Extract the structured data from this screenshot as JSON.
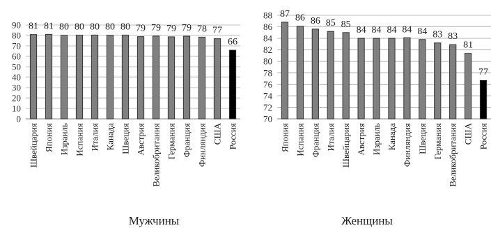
{
  "chart_data": [
    {
      "type": "bar",
      "caption": "Мужчины",
      "categories": [
        "Швейцария",
        "Япония",
        "Израиль",
        "Испания",
        "Италия",
        "Канада",
        "Швеция",
        "Австрия",
        "Великобритания",
        "Германия",
        "Франция",
        "Финляндия",
        "США",
        "Россия"
      ],
      "values": [
        81,
        81,
        80,
        80,
        80,
        80,
        80,
        79,
        79,
        79,
        79,
        78,
        77,
        66
      ],
      "exact_values": [
        80.9,
        81.1,
        80.2,
        80.3,
        80.4,
        80.2,
        80.4,
        78.9,
        79.4,
        78.7,
        79.3,
        78.4,
        76.9,
        65.9
      ],
      "ylim": [
        0,
        90
      ],
      "yticks": [
        0,
        10,
        20,
        30,
        40,
        50,
        60,
        70,
        80,
        90
      ],
      "grid": true,
      "colors": {
        "bar": "#808080",
        "highlight": "#000000"
      },
      "highlight": "Россия"
    },
    {
      "type": "bar",
      "caption": "Женщины",
      "categories": [
        "Япония",
        "Испания",
        "Франция",
        "Италия",
        "Швейцария",
        "Австрия",
        "Израиль",
        "Канада",
        "Финляндия",
        "Швеция",
        "Германия",
        "Великобритания",
        "США",
        "Россия"
      ],
      "values": [
        87,
        86,
        86,
        85,
        85,
        84,
        84,
        84,
        84,
        84,
        83,
        83,
        81,
        77
      ],
      "exact_values": [
        86.8,
        86.1,
        85.6,
        85.2,
        85.0,
        84.0,
        84.0,
        84.0,
        84.1,
        83.8,
        83.2,
        82.9,
        81.4,
        76.7
      ],
      "ylim": [
        70,
        88
      ],
      "yticks": [
        70,
        72,
        74,
        76,
        78,
        80,
        82,
        84,
        86,
        88
      ],
      "grid": true,
      "colors": {
        "bar": "#808080",
        "highlight": "#000000"
      },
      "highlight": "Россия"
    }
  ]
}
